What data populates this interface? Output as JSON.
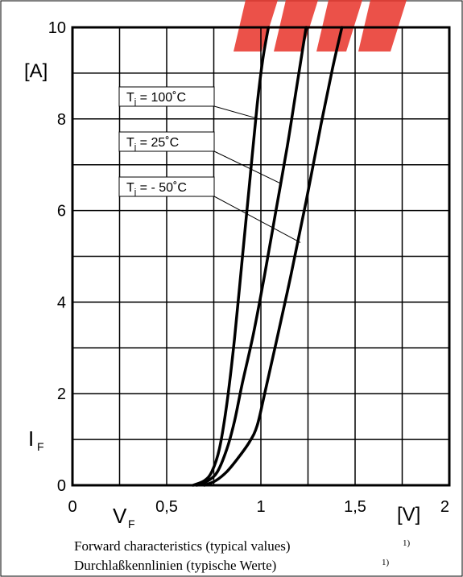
{
  "chart_data": {
    "type": "line",
    "xlim": [
      0,
      2
    ],
    "ylim": [
      0,
      10
    ],
    "x_ticks": [
      "0",
      "0,5",
      "1",
      "1,5",
      "2"
    ],
    "y_ticks": [
      "0",
      "2",
      "4",
      "6",
      "8",
      "10"
    ],
    "x_symbol": "V",
    "x_subscript": "F",
    "x_unit": "[V]",
    "y_symbol": "I",
    "y_subscript": "F",
    "y_unit": "[A]",
    "grid": true,
    "series": [
      {
        "name": "T j = 100°C",
        "label_symbol": "T",
        "label_subscript": "j",
        "label_value": " = 100˚C",
        "x": [
          0.64,
          0.7,
          0.74,
          0.78,
          0.82,
          0.86,
          0.9,
          0.94,
          0.98,
          1.01,
          1.04
        ],
        "y": [
          0.0,
          0.1,
          0.3,
          0.8,
          1.8,
          3.2,
          4.9,
          6.6,
          8.3,
          9.3,
          10.0
        ]
      },
      {
        "name": "T j = 25°C",
        "label_symbol": "T",
        "label_subscript": "j",
        "label_value": " = 25˚C",
        "x": [
          0.66,
          0.72,
          0.77,
          0.82,
          0.86,
          0.9,
          0.96,
          1.02,
          1.08,
          1.14,
          1.19,
          1.24
        ],
        "y": [
          0.0,
          0.1,
          0.3,
          0.8,
          1.4,
          2.2,
          3.3,
          4.6,
          6.0,
          7.4,
          8.7,
          10.0
        ]
      },
      {
        "name": "T j = - 50°C",
        "label_symbol": "T",
        "label_subscript": "j",
        "label_value": " = - 50˚C",
        "x": [
          0.7,
          0.76,
          0.82,
          0.88,
          0.94,
          0.98,
          1.02,
          1.08,
          1.16,
          1.24,
          1.32,
          1.38,
          1.43
        ],
        "y": [
          0.0,
          0.1,
          0.3,
          0.6,
          0.95,
          1.3,
          2.0,
          3.1,
          4.6,
          6.2,
          7.9,
          9.1,
          10.0
        ]
      }
    ],
    "caption_en": "Forward characteristics (typical values)",
    "caption_de": "Durchlaßkennlinien (typische Werte)",
    "footnote_mark": "1)",
    "curve_color": "#000000",
    "grid_color": "#000000",
    "logo_color": "#e8332a"
  }
}
